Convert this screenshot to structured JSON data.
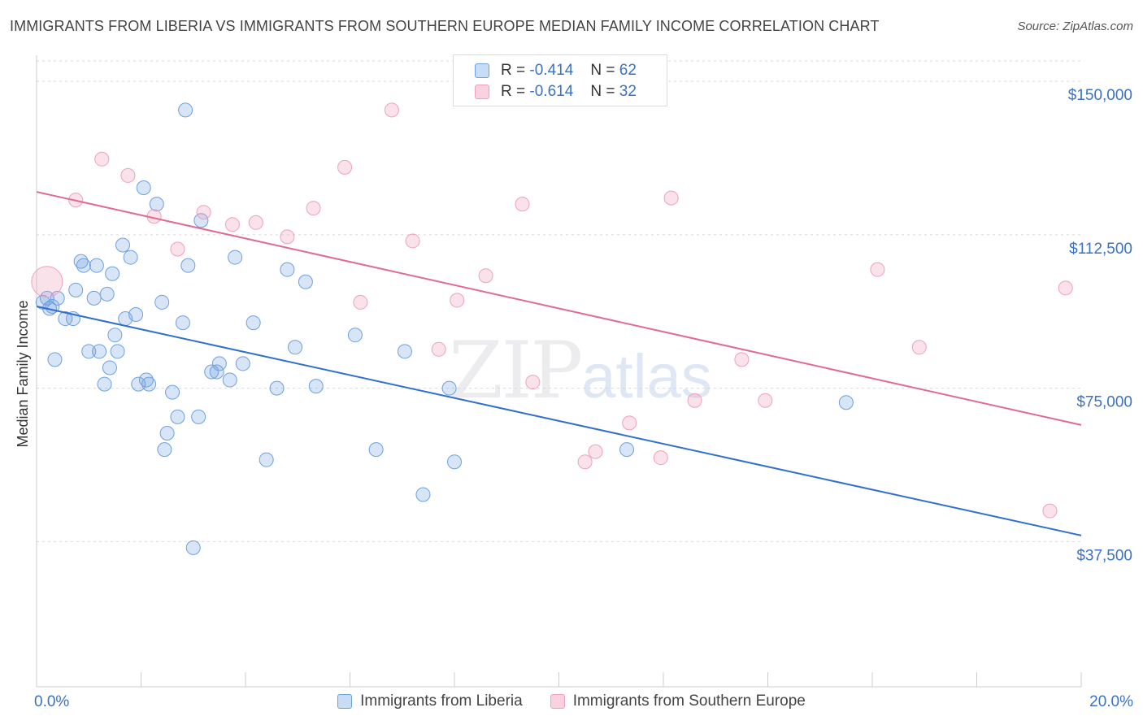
{
  "header": {
    "title": "IMMIGRANTS FROM LIBERIA VS IMMIGRANTS FROM SOUTHERN EUROPE MEDIAN FAMILY INCOME CORRELATION CHART",
    "source": "Source: ZipAtlas.com"
  },
  "watermark": {
    "zip": "ZIP",
    "atlas": "atlas"
  },
  "stats_legend": {
    "rows": [
      {
        "r_label": "R =",
        "r_value": "-0.414",
        "n_label": "N =",
        "n_value": "62"
      },
      {
        "r_label": "R =",
        "r_value": "-0.614",
        "n_label": "N =",
        "n_value": "32"
      }
    ]
  },
  "chart_data": {
    "type": "scatter",
    "title": "IMMIGRANTS FROM LIBERIA VS IMMIGRANTS FROM SOUTHERN EUROPE MEDIAN FAMILY INCOME CORRELATION CHART",
    "xlabel": "",
    "ylabel": "Median Family Income",
    "xlim": [
      0,
      20
    ],
    "ylim": [
      2000,
      155000
    ],
    "x_tick_labels": [
      "0.0%",
      "20.0%"
    ],
    "y_ticks": [
      37500,
      75000,
      112500,
      150000
    ],
    "y_tick_labels": [
      "$37,500",
      "$75,000",
      "$112,500",
      "$150,000"
    ],
    "grid": true,
    "legend_position": "bottom",
    "colors": {
      "liberia": "#6fa0e0",
      "liberia_line": "#2f6fd0",
      "seu": "#f0a0bb",
      "seu_line": "#e06a92",
      "tick_label": "#3a72c4"
    },
    "series": [
      {
        "name": "Immigrants from Liberia",
        "color": "#6fa0e0",
        "trendline": {
          "x": [
            0,
            20
          ],
          "y": [
            95000,
            39000
          ]
        },
        "points": [
          {
            "x": 0.12,
            "y": 96000
          },
          {
            "x": 0.2,
            "y": 97000
          },
          {
            "x": 0.3,
            "y": 95000
          },
          {
            "x": 0.4,
            "y": 97000
          },
          {
            "x": 0.55,
            "y": 92000
          },
          {
            "x": 0.7,
            "y": 92000
          },
          {
            "x": 0.75,
            "y": 99000
          },
          {
            "x": 0.35,
            "y": 82000
          },
          {
            "x": 0.85,
            "y": 106000
          },
          {
            "x": 0.9,
            "y": 105000
          },
          {
            "x": 1.0,
            "y": 84000
          },
          {
            "x": 1.1,
            "y": 97000
          },
          {
            "x": 1.15,
            "y": 105000
          },
          {
            "x": 1.2,
            "y": 84000
          },
          {
            "x": 1.3,
            "y": 76000
          },
          {
            "x": 1.35,
            "y": 98000
          },
          {
            "x": 1.4,
            "y": 80000
          },
          {
            "x": 1.45,
            "y": 103000
          },
          {
            "x": 1.5,
            "y": 88000
          },
          {
            "x": 1.55,
            "y": 84000
          },
          {
            "x": 1.65,
            "y": 110000
          },
          {
            "x": 1.7,
            "y": 92000
          },
          {
            "x": 1.8,
            "y": 107000
          },
          {
            "x": 1.9,
            "y": 93000
          },
          {
            "x": 1.95,
            "y": 76000
          },
          {
            "x": 2.05,
            "y": 124000
          },
          {
            "x": 2.1,
            "y": 77000
          },
          {
            "x": 2.15,
            "y": 76000
          },
          {
            "x": 2.3,
            "y": 120000
          },
          {
            "x": 2.4,
            "y": 96000
          },
          {
            "x": 2.45,
            "y": 60000
          },
          {
            "x": 2.5,
            "y": 64000
          },
          {
            "x": 2.6,
            "y": 74000
          },
          {
            "x": 2.7,
            "y": 68000
          },
          {
            "x": 2.8,
            "y": 91000
          },
          {
            "x": 2.85,
            "y": 143000
          },
          {
            "x": 2.9,
            "y": 105000
          },
          {
            "x": 3.0,
            "y": 36000
          },
          {
            "x": 3.1,
            "y": 68000
          },
          {
            "x": 3.15,
            "y": 116000
          },
          {
            "x": 3.35,
            "y": 79000
          },
          {
            "x": 3.45,
            "y": 79000
          },
          {
            "x": 3.5,
            "y": 81000
          },
          {
            "x": 3.7,
            "y": 77000
          },
          {
            "x": 3.8,
            "y": 107000
          },
          {
            "x": 3.95,
            "y": 81000
          },
          {
            "x": 4.15,
            "y": 91000
          },
          {
            "x": 4.4,
            "y": 57500
          },
          {
            "x": 4.6,
            "y": 75000
          },
          {
            "x": 4.8,
            "y": 104000
          },
          {
            "x": 4.95,
            "y": 85000
          },
          {
            "x": 5.15,
            "y": 101000
          },
          {
            "x": 5.35,
            "y": 75500
          },
          {
            "x": 6.1,
            "y": 88000
          },
          {
            "x": 6.5,
            "y": 60000
          },
          {
            "x": 7.05,
            "y": 84000
          },
          {
            "x": 7.4,
            "y": 49000
          },
          {
            "x": 7.9,
            "y": 75000
          },
          {
            "x": 8.0,
            "y": 57000
          },
          {
            "x": 11.3,
            "y": 60000
          },
          {
            "x": 15.5,
            "y": 71500
          },
          {
            "x": 0.25,
            "y": 94500
          }
        ]
      },
      {
        "name": "Immigrants from Southern Europe",
        "color": "#f0a0bb",
        "trendline": {
          "x": [
            0,
            20
          ],
          "y": [
            123000,
            66000
          ]
        },
        "points": [
          {
            "x": 0.2,
            "y": 101000,
            "big": true
          },
          {
            "x": 0.75,
            "y": 121000
          },
          {
            "x": 1.25,
            "y": 131000
          },
          {
            "x": 1.75,
            "y": 127000
          },
          {
            "x": 2.25,
            "y": 117000
          },
          {
            "x": 2.7,
            "y": 109000
          },
          {
            "x": 3.2,
            "y": 118000
          },
          {
            "x": 3.75,
            "y": 115000
          },
          {
            "x": 4.2,
            "y": 115500
          },
          {
            "x": 4.8,
            "y": 112000
          },
          {
            "x": 5.3,
            "y": 119000
          },
          {
            "x": 5.9,
            "y": 129000
          },
          {
            "x": 6.2,
            "y": 96000
          },
          {
            "x": 6.8,
            "y": 143000
          },
          {
            "x": 7.2,
            "y": 111000
          },
          {
            "x": 7.7,
            "y": 84500
          },
          {
            "x": 8.05,
            "y": 96500
          },
          {
            "x": 8.6,
            "y": 102500
          },
          {
            "x": 9.3,
            "y": 120000
          },
          {
            "x": 9.5,
            "y": 76500
          },
          {
            "x": 10.5,
            "y": 57000
          },
          {
            "x": 10.7,
            "y": 59500
          },
          {
            "x": 11.35,
            "y": 66500
          },
          {
            "x": 11.95,
            "y": 58000
          },
          {
            "x": 12.15,
            "y": 121500
          },
          {
            "x": 12.6,
            "y": 72000
          },
          {
            "x": 13.5,
            "y": 82000
          },
          {
            "x": 13.95,
            "y": 72000
          },
          {
            "x": 16.1,
            "y": 104000
          },
          {
            "x": 16.9,
            "y": 85000
          },
          {
            "x": 19.4,
            "y": 45000
          },
          {
            "x": 19.7,
            "y": 99500
          }
        ]
      }
    ]
  },
  "legend": {
    "items": [
      {
        "label": "Immigrants from Liberia",
        "color": "#c8dcf6",
        "border": "#6fa0e0"
      },
      {
        "label": "Immigrants from Southern Europe",
        "color": "#fad2df",
        "border": "#f0a0bb"
      }
    ]
  }
}
